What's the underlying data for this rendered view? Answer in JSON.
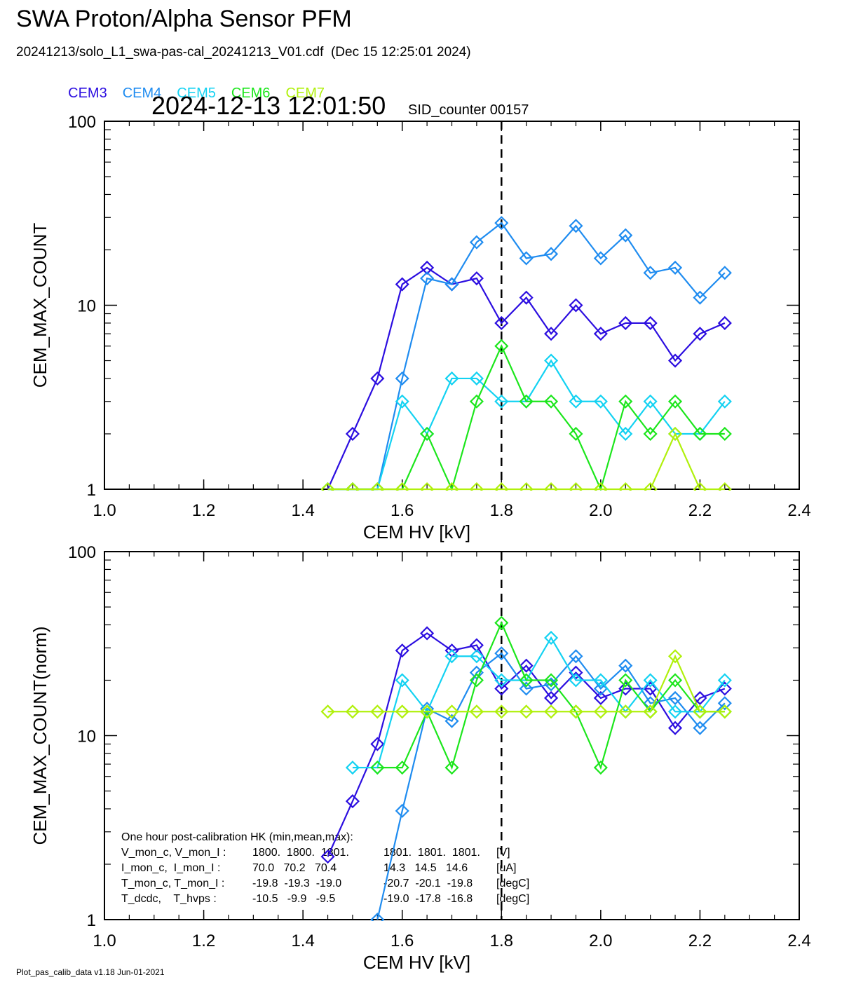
{
  "header": {
    "title": "SWA Proton/Alpha Sensor PFM",
    "subtitle": "20241213/solo_L1_swa-pas-cal_20241213_V01.cdf  (Dec 15 12:25:01 2024)",
    "timestamp": "2024-12-13 12:01:50",
    "sid_counter": "SID_counter 00157"
  },
  "legend": [
    {
      "label": "CEM3",
      "color": "#2c0ee0"
    },
    {
      "label": "CEM4",
      "color": "#1f8cf0"
    },
    {
      "label": "CEM5",
      "color": "#13d2f2"
    },
    {
      "label": "CEM6",
      "color": "#1ce61c"
    },
    {
      "label": "CEM7",
      "color": "#b0f00c"
    }
  ],
  "footer": "Plot_pas_calib_data v1.18 Jun-01-2021",
  "chart_data": [
    {
      "type": "line",
      "xlabel": "CEM HV [kV]",
      "ylabel": "CEM_MAX_COUNT",
      "xlim": [
        1.0,
        2.4
      ],
      "ylim": [
        1,
        100
      ],
      "yscale": "log",
      "xticks": [
        "1.0",
        "1.2",
        "1.4",
        "1.6",
        "1.8",
        "2.0",
        "2.2",
        "2.4"
      ],
      "yticks": [
        "1",
        "10",
        "100"
      ],
      "vline": 1.8,
      "x": [
        1.45,
        1.5,
        1.55,
        1.6,
        1.65,
        1.7,
        1.75,
        1.8,
        1.85,
        1.9,
        1.95,
        2.0,
        2.05,
        2.1,
        2.15,
        2.2,
        2.25
      ],
      "series": [
        {
          "name": "CEM3",
          "color": "#2c0ee0",
          "values": [
            1,
            2,
            4,
            13,
            16,
            13,
            14,
            8,
            11,
            7,
            10,
            7,
            8,
            8,
            5,
            7,
            8
          ]
        },
        {
          "name": "CEM4",
          "color": "#1f8cf0",
          "values": [
            1,
            1,
            1,
            4,
            14,
            13,
            22,
            28,
            18,
            19,
            27,
            18,
            24,
            15,
            16,
            11,
            15
          ]
        },
        {
          "name": "CEM5",
          "color": "#13d2f2",
          "values": [
            1,
            1,
            1,
            3,
            2,
            4,
            4,
            3,
            3,
            5,
            3,
            3,
            2,
            3,
            2,
            2,
            3
          ]
        },
        {
          "name": "CEM6",
          "color": "#1ce61c",
          "values": [
            1,
            1,
            1,
            1,
            2,
            1,
            3,
            6,
            3,
            3,
            2,
            1,
            3,
            2,
            3,
            2,
            2
          ]
        },
        {
          "name": "CEM7",
          "color": "#b0f00c",
          "values": [
            1,
            1,
            1,
            1,
            1,
            1,
            1,
            1,
            1,
            1,
            1,
            1,
            1,
            1,
            2,
            1,
            1
          ]
        }
      ]
    },
    {
      "type": "line",
      "xlabel": "CEM HV [kV]",
      "ylabel": "CEM_MAX_COUNT(norm)",
      "xlim": [
        1.0,
        2.4
      ],
      "ylim": [
        1,
        100
      ],
      "yscale": "log",
      "xticks": [
        "1.0",
        "1.2",
        "1.4",
        "1.6",
        "1.8",
        "2.0",
        "2.2",
        "2.4"
      ],
      "yticks": [
        "1",
        "10",
        "100"
      ],
      "vline": 1.8,
      "x": [
        1.45,
        1.5,
        1.55,
        1.6,
        1.65,
        1.7,
        1.75,
        1.8,
        1.85,
        1.9,
        1.95,
        2.0,
        2.05,
        2.1,
        2.15,
        2.2,
        2.25
      ],
      "series": [
        {
          "name": "CEM3",
          "color": "#2c0ee0",
          "values": [
            2.2,
            4.4,
            9.0,
            29,
            36,
            29,
            31,
            18,
            24,
            16,
            22,
            16,
            18,
            18,
            11,
            16,
            18
          ]
        },
        {
          "name": "CEM4",
          "color": "#1f8cf0",
          "x": [
            1.55,
            1.6,
            1.65,
            1.7,
            1.75,
            1.8,
            1.85,
            1.9,
            1.95,
            2.0,
            2.05,
            2.1,
            2.15,
            2.2,
            2.25
          ],
          "values": [
            1.0,
            3.9,
            14,
            12,
            22,
            28,
            18,
            19,
            27,
            18,
            24,
            15,
            16,
            11,
            15
          ]
        },
        {
          "name": "CEM5",
          "color": "#13d2f2",
          "x": [
            1.5,
            1.55,
            1.6,
            1.65,
            1.7,
            1.75,
            1.8,
            1.85,
            1.9,
            1.95,
            2.0,
            2.05,
            2.1,
            2.15,
            2.2,
            2.25
          ],
          "values": [
            6.7,
            6.7,
            20,
            13.5,
            27,
            27,
            20,
            20,
            34,
            20,
            20,
            13.5,
            20,
            13.5,
            13.5,
            20
          ]
        },
        {
          "name": "CEM6",
          "color": "#1ce61c",
          "x": [
            1.55,
            1.6,
            1.65,
            1.7,
            1.75,
            1.8,
            1.85,
            1.9,
            1.95,
            2.0,
            2.05,
            2.1,
            2.15,
            2.2,
            2.25
          ],
          "values": [
            6.7,
            6.7,
            13.5,
            6.7,
            20,
            41,
            20,
            20,
            13.5,
            6.7,
            20,
            13.5,
            20,
            13.5,
            13.5
          ]
        },
        {
          "name": "CEM7",
          "color": "#b0f00c",
          "values": [
            13.5,
            13.5,
            13.5,
            13.5,
            13.5,
            13.5,
            13.5,
            13.5,
            13.5,
            13.5,
            13.5,
            13.5,
            13.5,
            13.5,
            27,
            13.5,
            13.5
          ]
        }
      ],
      "annotation": {
        "heading": "One hour post-calibration HK (min,mean,max):",
        "rows": [
          {
            "label": "V_mon_c, V_mon_I :",
            "a": "1800.  1800.  1801.",
            "b": "1801.  1801.  1801.",
            "unit": "[V]"
          },
          {
            "label": "I_mon_c,  I_mon_I :",
            "a": "70.0   70.2   70.4",
            "b": "14.3   14.5   14.6",
            "unit": "[uA]"
          },
          {
            "label": "T_mon_c, T_mon_I :",
            "a": "-19.8  -19.3  -19.0",
            "b": "-20.7  -20.1  -19.8",
            "unit": "[degC]"
          },
          {
            "label": "T_dcdc,    T_hvps :",
            "a": "-10.5   -9.9   -9.5",
            "b": "-19.0  -17.8  -16.8",
            "unit": "[degC]"
          }
        ]
      }
    }
  ]
}
